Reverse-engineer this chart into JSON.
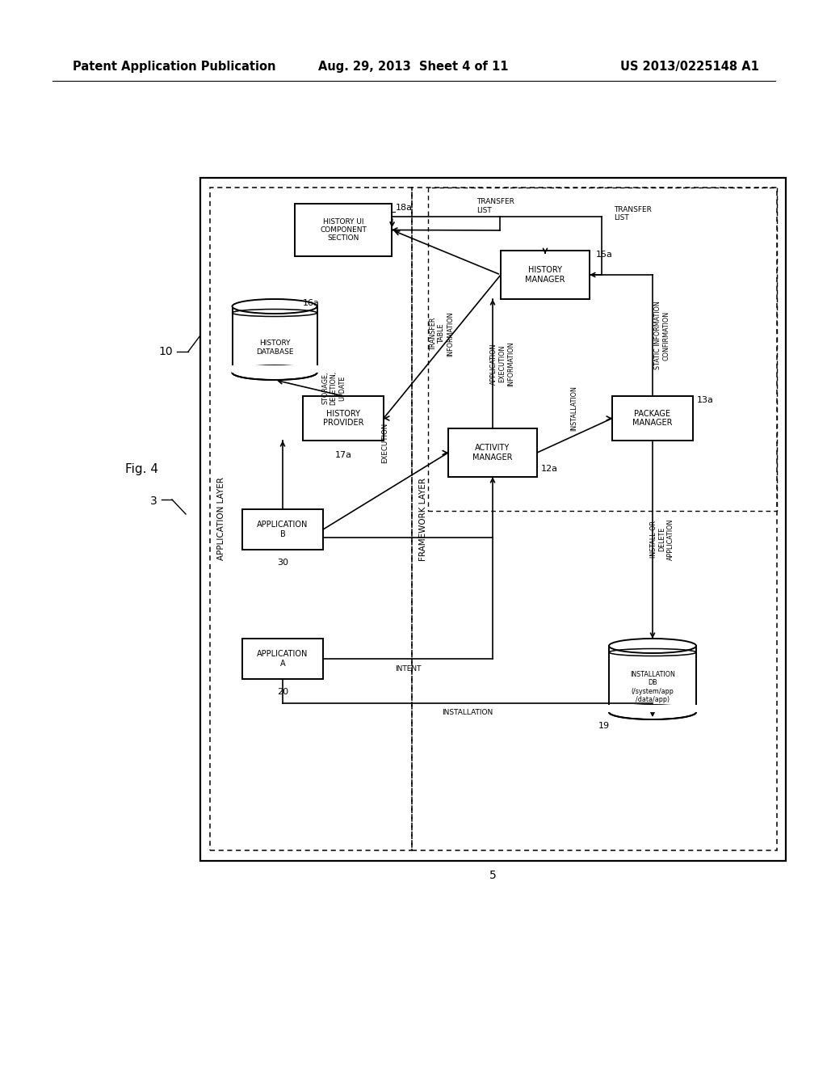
{
  "title_left": "Patent Application Publication",
  "title_mid": "Aug. 29, 2013  Sheet 4 of 11",
  "title_right": "US 2013/0225148 A1",
  "bg_color": "#ffffff"
}
